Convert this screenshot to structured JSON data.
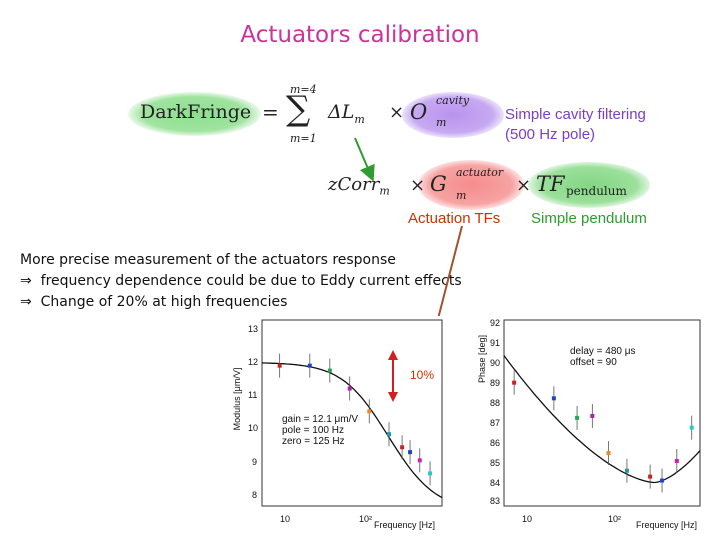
{
  "title": "Actuators calibration",
  "equation": {
    "lhs": "DarkFringe",
    "equals": "=",
    "sum_upper": "m=4",
    "sum_symbol": "∑",
    "sum_lower": "m=1",
    "delta_L": "ΔL",
    "sub_m": "m",
    "times": "×",
    "O_symbol": "O",
    "O_sup": "cavity",
    "zcorr": "zCorr",
    "G_symbol": "G",
    "G_sup": "actuator",
    "TF_symbol": "TF",
    "TF_sub": "pendulum"
  },
  "notes": {
    "cavity_line1": "Simple cavity filtering",
    "cavity_line2": "(500 Hz pole)",
    "actuation": "Actuation TFs",
    "pendulum": "Simple pendulum"
  },
  "bullets": {
    "line1": "More precise measurement of the actuators response",
    "line2": "frequency dependence could be due to Eddy current effects",
    "line3": "Change of 20% at high frequencies",
    "arrow": "⇒"
  },
  "colors": {
    "title": "#cc3399",
    "green_blob": "#7ed67e",
    "purple_blob": "#c9a8f0",
    "pink_blob": "#f59a9a",
    "cavity_note": "#7a3fc4",
    "actuation_note": "#cc3300",
    "pendulum_note": "#2e9c2e"
  },
  "chart_data": [
    {
      "type": "scatter",
      "title": "",
      "xlabel": "Frequency [Hz]",
      "ylabel": "Modulus [μm/V]",
      "x_ticks": [
        "10",
        "10²"
      ],
      "y_ticks": [
        "13",
        "12",
        "11",
        "10",
        "9",
        "8"
      ],
      "ylim": [
        7.7,
        13.4
      ],
      "annotation": "gain = 12.1 μm/V\npole = 100 Hz\nzero = 125 Hz",
      "marker_label": "10%",
      "points": [
        {
          "x": 6.0,
          "y": 12.0
        },
        {
          "x": 12,
          "y": 12.0
        },
        {
          "x": 19,
          "y": 11.85
        },
        {
          "x": 30,
          "y": 11.3
        },
        {
          "x": 47,
          "y": 10.6
        },
        {
          "x": 74,
          "y": 9.9
        },
        {
          "x": 100,
          "y": 9.5
        },
        {
          "x": 120,
          "y": 9.35
        },
        {
          "x": 150,
          "y": 9.1
        },
        {
          "x": 190,
          "y": 8.7
        }
      ]
    },
    {
      "type": "scatter",
      "title": "",
      "xlabel": "Frequency [Hz]",
      "ylabel": "Phase [deg]",
      "x_ticks": [
        "10",
        "10²"
      ],
      "y_ticks": [
        "92",
        "91",
        "90",
        "89",
        "88",
        "87",
        "86",
        "85",
        "84",
        "83"
      ],
      "ylim": [
        82.7,
        92.2
      ],
      "annotation": "delay = 480 μs\noffset = 90",
      "points": [
        {
          "x": 5.0,
          "y": 89.0
        },
        {
          "x": 12,
          "y": 88.2
        },
        {
          "x": 20,
          "y": 87.2
        },
        {
          "x": 28,
          "y": 87.3
        },
        {
          "x": 40,
          "y": 85.4
        },
        {
          "x": 60,
          "y": 84.5
        },
        {
          "x": 100,
          "y": 84.2
        },
        {
          "x": 130,
          "y": 84.0
        },
        {
          "x": 180,
          "y": 85.0
        },
        {
          "x": 250,
          "y": 86.7
        }
      ]
    }
  ]
}
